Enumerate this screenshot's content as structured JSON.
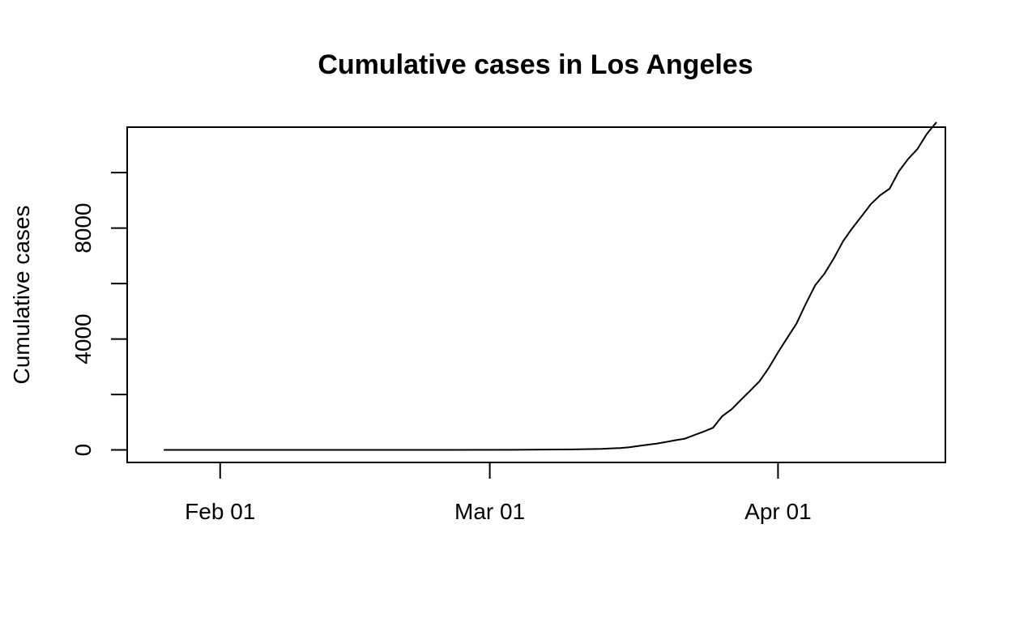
{
  "chart_data": {
    "type": "line",
    "title": "Cumulative cases in Los Angeles",
    "xlabel": "",
    "ylabel": "Cumulative cases",
    "x_type": "date",
    "xlim": [
      "2020-01-22",
      "2020-04-19"
    ],
    "ylim": [
      -451,
      11640
    ],
    "x_ticks": [
      {
        "value": "2020-02-01",
        "label": "Feb 01"
      },
      {
        "value": "2020-03-01",
        "label": "Mar 01"
      },
      {
        "value": "2020-04-01",
        "label": "Apr 01"
      }
    ],
    "y_ticks": [
      {
        "value": 0,
        "label": "0"
      },
      {
        "value": 2000,
        "label": ""
      },
      {
        "value": 4000,
        "label": "4000"
      },
      {
        "value": 6000,
        "label": ""
      },
      {
        "value": 8000,
        "label": "8000"
      },
      {
        "value": 10000,
        "label": ""
      }
    ],
    "grid": false,
    "legend": "none",
    "line_color": "#000000",
    "series": [
      {
        "x": [
          "2020-01-26",
          "2020-02-05",
          "2020-02-15",
          "2020-02-25",
          "2020-03-05",
          "2020-03-10",
          "2020-03-13",
          "2020-03-15",
          "2020-03-16",
          "2020-03-17",
          "2020-03-18",
          "2020-03-19",
          "2020-03-20",
          "2020-03-21",
          "2020-03-22",
          "2020-03-23",
          "2020-03-24",
          "2020-03-25",
          "2020-03-26",
          "2020-03-27",
          "2020-03-28",
          "2020-03-29",
          "2020-03-30",
          "2020-03-31",
          "2020-04-01",
          "2020-04-02",
          "2020-04-03",
          "2020-04-04",
          "2020-04-05",
          "2020-04-06",
          "2020-04-07",
          "2020-04-08",
          "2020-04-09",
          "2020-04-10",
          "2020-04-11",
          "2020-04-12",
          "2020-04-13",
          "2020-04-14",
          "2020-04-15",
          "2020-04-16",
          "2020-04-17",
          "2020-04-18"
        ],
        "values": [
          1,
          1,
          1,
          1,
          7,
          20,
          40,
          69,
          94,
          144,
          190,
          231,
          292,
          351,
          407,
          536,
          662,
          799,
          1216,
          1465,
          1804,
          2136,
          2474,
          2955,
          3518,
          4045,
          4566,
          5277,
          5940,
          6360,
          6910,
          7530,
          8000,
          8430,
          8870,
          9190,
          9420,
          10047,
          10496,
          10854,
          11391,
          11800
        ]
      }
    ]
  }
}
